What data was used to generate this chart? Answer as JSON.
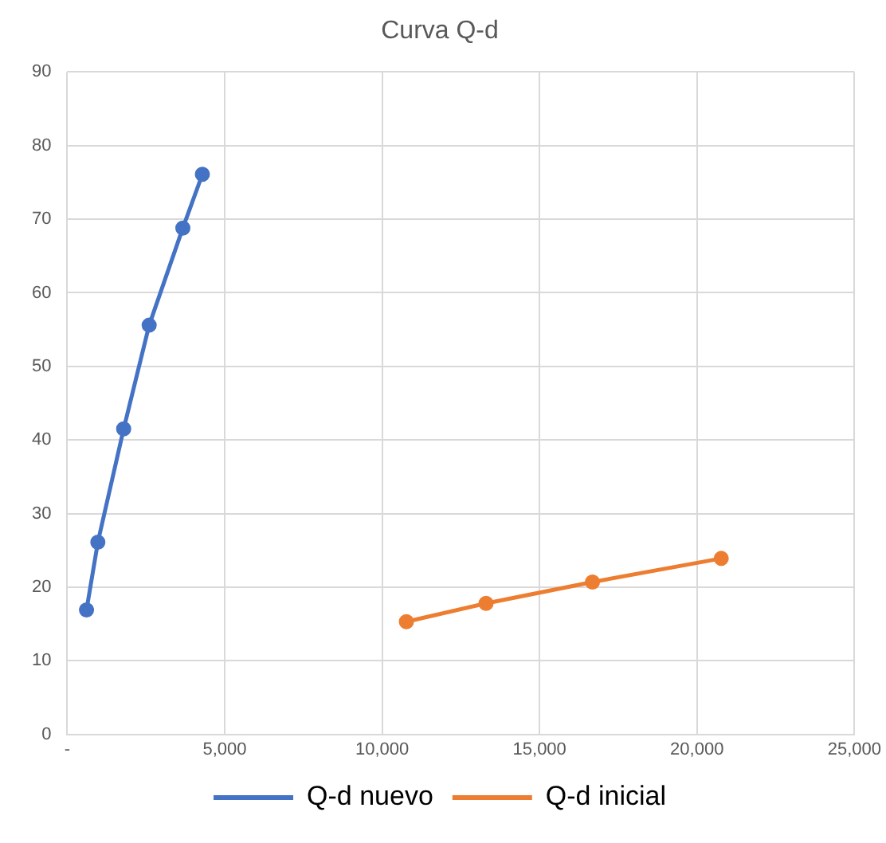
{
  "chart_data": {
    "type": "line",
    "title": "Curva Q-d",
    "xlim": [
      0,
      25000
    ],
    "xticks": [
      {
        "value": 0,
        "label": "-"
      },
      {
        "value": 5000,
        "label": "5,000"
      },
      {
        "value": 10000,
        "label": "10,000"
      },
      {
        "value": 15000,
        "label": "15,000"
      },
      {
        "value": 20000,
        "label": "20,000"
      },
      {
        "value": 25000,
        "label": "25,000"
      }
    ],
    "ylim": [
      0,
      90
    ],
    "yticks": [
      0,
      10,
      20,
      30,
      40,
      50,
      60,
      70,
      80,
      90
    ],
    "grid": true,
    "legend": "bottom",
    "marker": "circle",
    "line_style": "solid",
    "series": [
      {
        "name": "Q-d nuevo",
        "color": "#4472c4",
        "x": [
          610,
          970,
          1790,
          2600,
          3670,
          4290
        ],
        "values": [
          16.9,
          26.1,
          41.5,
          55.6,
          68.8,
          76.1
        ]
      },
      {
        "name": "Q-d inicial",
        "color": "#ed7d31",
        "x": [
          10770,
          13300,
          16680,
          20770
        ],
        "values": [
          15.3,
          17.8,
          20.7,
          23.9
        ]
      }
    ]
  }
}
